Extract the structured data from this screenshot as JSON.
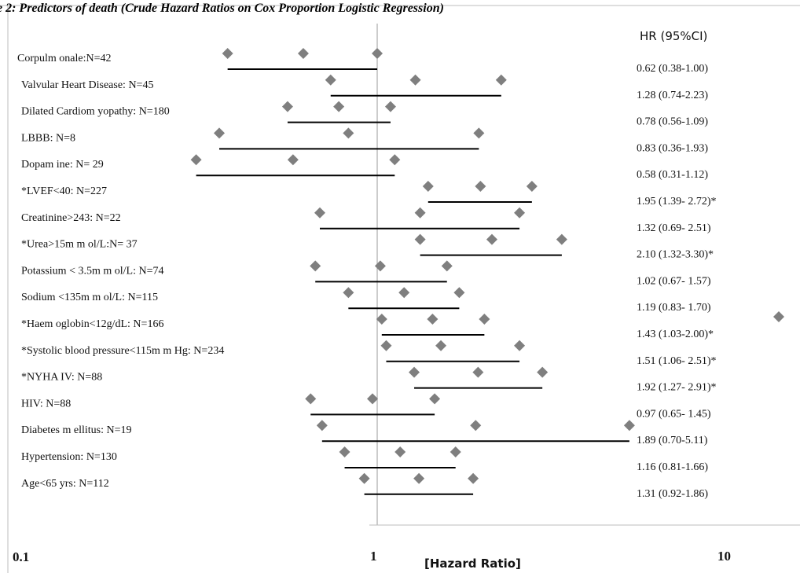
{
  "chart_data": {
    "type": "scatter",
    "title": "e 2: Predictors of death (Crude Hazard Ratios on Cox Proportion Logistic Regression)",
    "xlabel": "[Hazard Ratio]",
    "ylabel": "",
    "x_scale": "log",
    "xlim": [
      0.1,
      10
    ],
    "x_ticks": [
      "0.1",
      "1",
      "10"
    ],
    "hr_column_header": "HR (95%CI)",
    "reference_line_x": 1,
    "grid": false,
    "rows": [
      {
        "label": "Corpulm onale:N=42",
        "hr_text": "0.62 (0.38-1.00)",
        "hr": 0.62,
        "lower": 0.38,
        "upper": 1.0
      },
      {
        "label": "Valvular Heart Disease: N=45",
        "hr_text": "1.28 (0.74-2.23)",
        "hr": 1.28,
        "lower": 0.74,
        "upper": 2.23
      },
      {
        "label": "Dilated Cardiom yopathy: N=180",
        "hr_text": "0.78 (0.56-1.09)",
        "hr": 0.78,
        "lower": 0.56,
        "upper": 1.09
      },
      {
        "label": "LBBB: N=8",
        "hr_text": "0.83 (0.36-1.93)",
        "hr": 0.83,
        "lower": 0.36,
        "upper": 1.93
      },
      {
        "label": "Dopam ine: N= 29",
        "hr_text": "0.58 (0.31-1.12)",
        "hr": 0.58,
        "lower": 0.31,
        "upper": 1.12
      },
      {
        "label": "*LVEF<40: N=227",
        "hr_text": "1.95 (1.39- 2.72)*",
        "hr": 1.95,
        "lower": 1.39,
        "upper": 2.72
      },
      {
        "label": "Creatinine>243: N=22",
        "hr_text": "1.32 (0.69- 2.51)",
        "hr": 1.32,
        "lower": 0.69,
        "upper": 2.51
      },
      {
        "label": "*Urea>15m m ol/L:N= 37",
        "hr_text": "2.10 (1.32-3.30)*",
        "hr": 2.1,
        "lower": 1.32,
        "upper": 3.3
      },
      {
        "label": "Potassium < 3.5m m ol/L: N=74",
        "hr_text": "1.02 (0.67- 1.57)",
        "hr": 1.02,
        "lower": 0.67,
        "upper": 1.57
      },
      {
        "label": "Sodium <135m m ol/L: N=115",
        "hr_text": "1.19 (0.83- 1.70)",
        "hr": 1.19,
        "lower": 0.83,
        "upper": 1.7
      },
      {
        "label": "*Haem oglobin<12g/dL: N=166",
        "hr_text": "1.43 (1.03-2.00)*",
        "hr": 1.43,
        "lower": 1.03,
        "upper": 2.0
      },
      {
        "label": "*Systolic blood pressure<115m m Hg: N=234",
        "hr_text": "1.51 (1.06- 2.51)*",
        "hr": 1.51,
        "lower": 1.06,
        "upper": 2.51
      },
      {
        "label": "*NYHA IV: N=88",
        "hr_text": "1.92 (1.27- 2.91)*",
        "hr": 1.92,
        "lower": 1.27,
        "upper": 2.91
      },
      {
        "label": "HIV: N=88",
        "hr_text": "0.97 (0.65- 1.45)",
        "hr": 0.97,
        "lower": 0.65,
        "upper": 1.45
      },
      {
        "label": "Diabetes m ellitus: N=19",
        "hr_text": "1.89 (0.70-5.11)",
        "hr": 1.89,
        "lower": 0.7,
        "upper": 5.11
      },
      {
        "label": "Hypertension: N=130",
        "hr_text": "1.16 (0.81-1.66)",
        "hr": 1.16,
        "lower": 0.81,
        "upper": 1.66
      },
      {
        "label": "Age<65 yrs: N=112",
        "hr_text": "1.31 (0.92-1.86)",
        "hr": 1.31,
        "lower": 0.92,
        "upper": 1.86
      }
    ],
    "colors": {
      "marker": "#7f7f7f",
      "line": "#000000",
      "reference": "#9a9a9a",
      "frame": "#bdbdbd"
    }
  }
}
